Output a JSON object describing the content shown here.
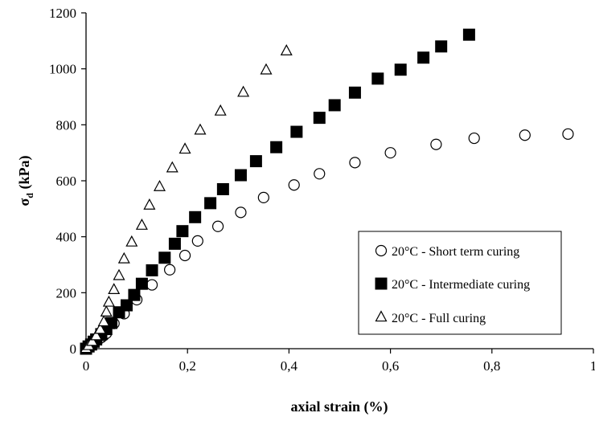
{
  "chart_data": {
    "type": "scatter",
    "xlabel": "axial strain (%)",
    "ylabel": {
      "sigma": "σ",
      "subscript": "d",
      "unit": " (kPa)"
    },
    "xlim": [
      0,
      1
    ],
    "ylim": [
      0,
      1200
    ],
    "x_ticks": [
      0,
      0.2,
      0.4,
      0.6,
      0.8,
      1
    ],
    "x_tick_labels": [
      "0",
      "0,2",
      "0,4",
      "0,6",
      "0,8",
      "1"
    ],
    "y_ticks": [
      0,
      200,
      400,
      600,
      800,
      1000,
      1200
    ],
    "y_tick_labels": [
      "0",
      "200",
      "400",
      "600",
      "800",
      "1000",
      "1200"
    ],
    "grid": false,
    "legend_position": "bottom-right",
    "series": [
      {
        "name": "20°C - Short term curing",
        "marker": "circle-open",
        "color": "#000000",
        "points": [
          [
            0,
            0
          ],
          [
            0.005,
            5
          ],
          [
            0.01,
            12
          ],
          [
            0.015,
            20
          ],
          [
            0.02,
            28
          ],
          [
            0.025,
            34
          ],
          [
            0.03,
            40
          ],
          [
            0.035,
            47
          ],
          [
            0.04,
            55
          ],
          [
            0.055,
            90
          ],
          [
            0.075,
            125
          ],
          [
            0.1,
            175
          ],
          [
            0.13,
            228
          ],
          [
            0.165,
            282
          ],
          [
            0.195,
            333
          ],
          [
            0.22,
            385
          ],
          [
            0.26,
            437
          ],
          [
            0.305,
            487
          ],
          [
            0.35,
            540
          ],
          [
            0.41,
            585
          ],
          [
            0.46,
            625
          ],
          [
            0.53,
            665
          ],
          [
            0.6,
            700
          ],
          [
            0.69,
            730
          ],
          [
            0.765,
            752
          ],
          [
            0.865,
            763
          ],
          [
            0.95,
            767
          ]
        ]
      },
      {
        "name": "20°C - Intermediate curing",
        "marker": "square-filled",
        "color": "#000000",
        "points": [
          [
            0,
            0
          ],
          [
            0.005,
            8
          ],
          [
            0.01,
            15
          ],
          [
            0.015,
            25
          ],
          [
            0.02,
            33
          ],
          [
            0.03,
            52
          ],
          [
            0.04,
            70
          ],
          [
            0.05,
            92
          ],
          [
            0.065,
            130
          ],
          [
            0.08,
            155
          ],
          [
            0.095,
            192
          ],
          [
            0.11,
            232
          ],
          [
            0.13,
            280
          ],
          [
            0.155,
            325
          ],
          [
            0.175,
            375
          ],
          [
            0.19,
            420
          ],
          [
            0.215,
            470
          ],
          [
            0.245,
            520
          ],
          [
            0.27,
            570
          ],
          [
            0.305,
            620
          ],
          [
            0.335,
            670
          ],
          [
            0.375,
            720
          ],
          [
            0.415,
            775
          ],
          [
            0.46,
            825
          ],
          [
            0.49,
            870
          ],
          [
            0.53,
            915
          ],
          [
            0.575,
            965
          ],
          [
            0.62,
            997
          ],
          [
            0.665,
            1040
          ],
          [
            0.7,
            1080
          ],
          [
            0.755,
            1122
          ]
        ]
      },
      {
        "name": "20°C - Full curing",
        "marker": "triangle-open",
        "color": "#000000",
        "points": [
          [
            0,
            0
          ],
          [
            0.005,
            10
          ],
          [
            0.012,
            25
          ],
          [
            0.02,
            45
          ],
          [
            0.028,
            68
          ],
          [
            0.035,
            95
          ],
          [
            0.04,
            130
          ],
          [
            0.045,
            165
          ],
          [
            0.055,
            210
          ],
          [
            0.065,
            260
          ],
          [
            0.075,
            320
          ],
          [
            0.09,
            380
          ],
          [
            0.11,
            440
          ],
          [
            0.125,
            512
          ],
          [
            0.145,
            578
          ],
          [
            0.17,
            645
          ],
          [
            0.195,
            712
          ],
          [
            0.225,
            780
          ],
          [
            0.265,
            848
          ],
          [
            0.31,
            915
          ],
          [
            0.355,
            995
          ],
          [
            0.395,
            1063
          ]
        ]
      }
    ]
  }
}
